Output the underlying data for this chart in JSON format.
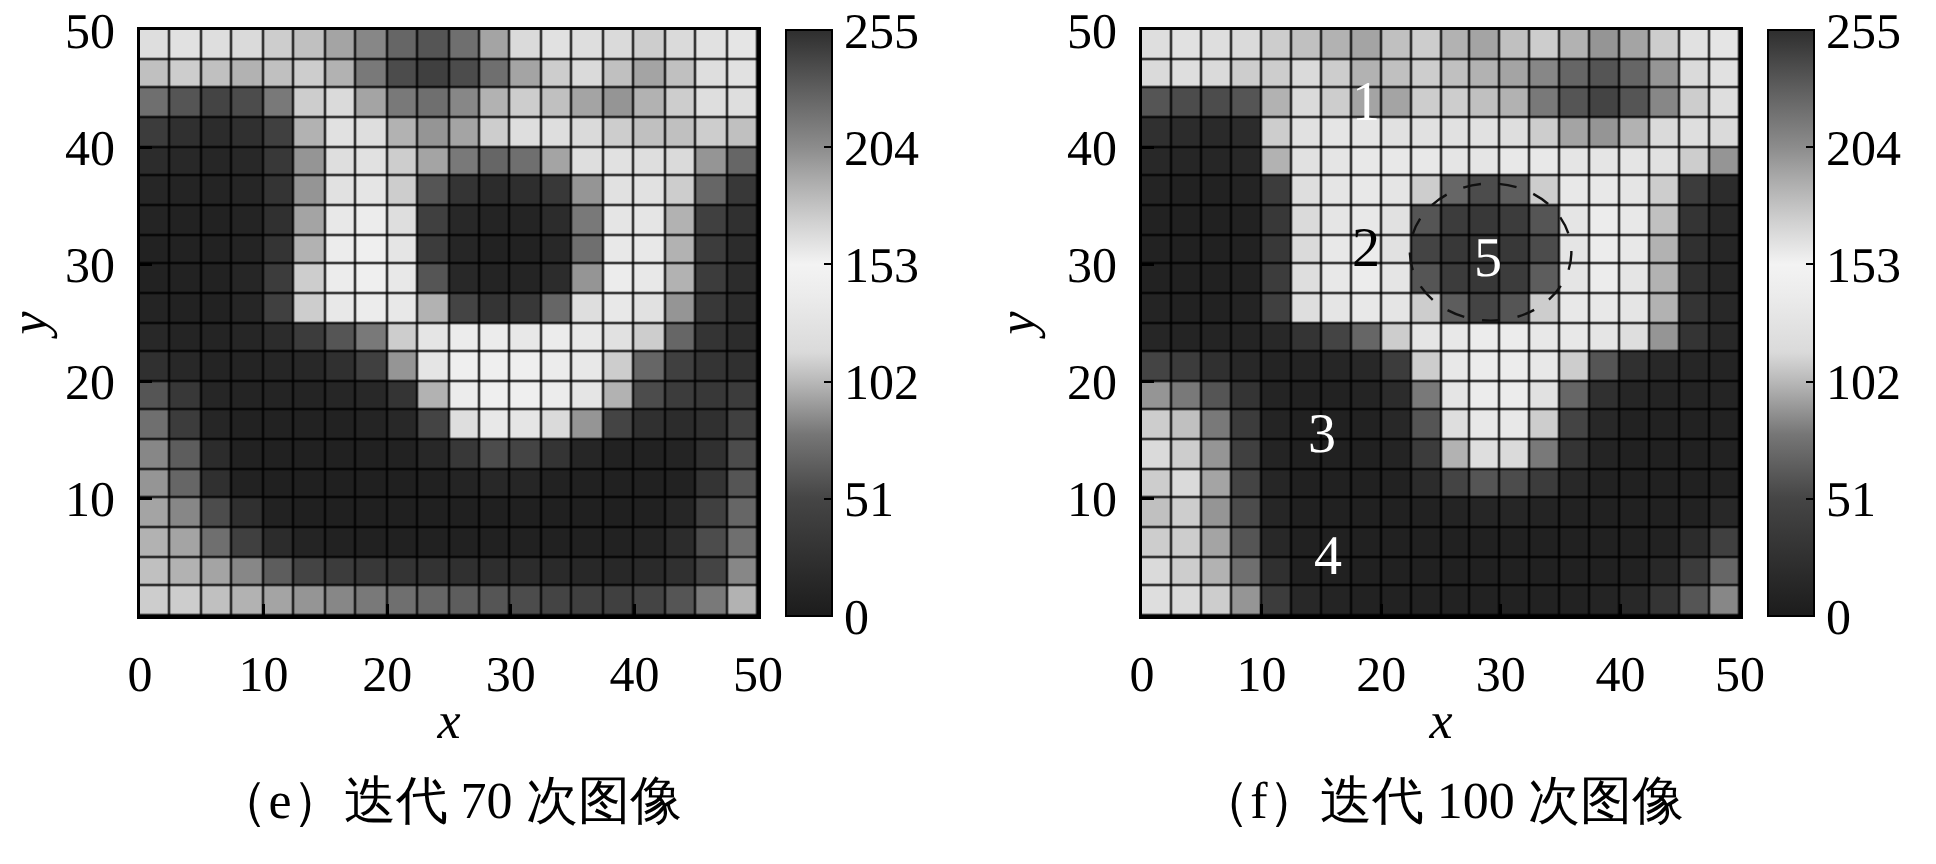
{
  "chart_data": [
    {
      "type": "heatmap",
      "title": "（e）迭代 70 次图像",
      "xlabel": "x",
      "ylabel": "y",
      "x": [
        1.25,
        3.75,
        6.25,
        8.75,
        11.25,
        13.75,
        16.25,
        18.75,
        21.25,
        23.75,
        26.25,
        28.75,
        31.25,
        33.75,
        36.25,
        38.75,
        41.25,
        43.75,
        46.25,
        48.75
      ],
      "cells": [
        [
          120,
          125,
          120,
          115,
          110,
          105,
          95,
          85,
          70,
          60,
          75,
          95,
          115,
          125,
          120,
          115,
          110,
          115,
          125,
          130
        ],
        [
          105,
          110,
          105,
          100,
          105,
          110,
          100,
          80,
          55,
          45,
          55,
          75,
          95,
          110,
          115,
          105,
          95,
          105,
          120,
          125
        ],
        [
          75,
          60,
          50,
          55,
          80,
          110,
          115,
          95,
          80,
          75,
          85,
          100,
          110,
          105,
          95,
          90,
          100,
          110,
          120,
          120
        ],
        [
          40,
          25,
          20,
          25,
          45,
          100,
          125,
          120,
          100,
          90,
          95,
          110,
          120,
          120,
          115,
          110,
          105,
          105,
          110,
          105
        ],
        [
          20,
          15,
          12,
          15,
          35,
          90,
          120,
          125,
          110,
          95,
          80,
          70,
          75,
          95,
          120,
          125,
          120,
          115,
          90,
          70
        ],
        [
          12,
          10,
          10,
          12,
          30,
          90,
          125,
          130,
          110,
          60,
          30,
          20,
          22,
          35,
          90,
          125,
          125,
          110,
          70,
          35
        ],
        [
          10,
          8,
          8,
          10,
          25,
          95,
          135,
          140,
          120,
          45,
          15,
          10,
          10,
          20,
          80,
          130,
          130,
          100,
          45,
          25
        ],
        [
          8,
          8,
          8,
          10,
          30,
          100,
          140,
          145,
          130,
          40,
          12,
          8,
          8,
          15,
          75,
          135,
          135,
          100,
          40,
          20
        ],
        [
          8,
          8,
          8,
          12,
          40,
          110,
          140,
          145,
          135,
          60,
          15,
          10,
          10,
          20,
          90,
          140,
          135,
          100,
          40,
          20
        ],
        [
          10,
          8,
          8,
          12,
          45,
          110,
          135,
          140,
          135,
          100,
          50,
          30,
          35,
          70,
          120,
          135,
          125,
          90,
          35,
          20
        ],
        [
          15,
          10,
          10,
          12,
          20,
          40,
          60,
          80,
          110,
          130,
          140,
          140,
          135,
          140,
          135,
          125,
          110,
          70,
          30,
          20
        ],
        [
          25,
          15,
          10,
          10,
          12,
          15,
          25,
          45,
          90,
          130,
          145,
          145,
          145,
          140,
          135,
          110,
          70,
          45,
          30,
          25
        ],
        [
          60,
          35,
          12,
          10,
          10,
          10,
          12,
          15,
          30,
          100,
          140,
          145,
          145,
          140,
          130,
          100,
          55,
          40,
          35,
          40
        ],
        [
          75,
          40,
          12,
          8,
          8,
          8,
          8,
          10,
          15,
          50,
          120,
          135,
          130,
          115,
          90,
          50,
          25,
          20,
          25,
          45
        ],
        [
          85,
          65,
          20,
          8,
          6,
          6,
          6,
          6,
          8,
          15,
          35,
          55,
          50,
          30,
          12,
          8,
          8,
          10,
          25,
          55
        ],
        [
          90,
          70,
          25,
          8,
          5,
          5,
          5,
          5,
          5,
          6,
          10,
          15,
          12,
          8,
          6,
          6,
          6,
          8,
          30,
          60
        ],
        [
          95,
          85,
          55,
          25,
          8,
          5,
          5,
          5,
          5,
          5,
          5,
          5,
          5,
          5,
          5,
          5,
          6,
          12,
          45,
          70
        ],
        [
          100,
          95,
          75,
          45,
          20,
          10,
          8,
          6,
          6,
          6,
          6,
          6,
          6,
          6,
          6,
          8,
          10,
          20,
          55,
          75
        ],
        [
          105,
          100,
          95,
          85,
          65,
          50,
          40,
          35,
          30,
          28,
          25,
          22,
          20,
          18,
          15,
          15,
          18,
          25,
          50,
          85
        ],
        [
          110,
          110,
          105,
          100,
          95,
          90,
          85,
          80,
          75,
          70,
          65,
          60,
          55,
          50,
          45,
          45,
          50,
          60,
          80,
          100
        ]
      ],
      "clim": [
        0,
        255
      ],
      "cticks": [
        0,
        51,
        102,
        153,
        204,
        255
      ],
      "xlim": [
        0,
        50
      ],
      "xticks": [
        0,
        10,
        20,
        30,
        40,
        50
      ],
      "ylim": [
        0,
        50
      ],
      "yticks": [
        10,
        20,
        30,
        40,
        50
      ]
    },
    {
      "type": "heatmap",
      "title": "（f）迭代 100 次图像",
      "xlabel": "x",
      "ylabel": "y",
      "x": [
        1.25,
        3.75,
        6.25,
        8.75,
        11.25,
        13.75,
        16.25,
        18.75,
        21.25,
        23.75,
        26.25,
        28.75,
        31.25,
        33.75,
        36.25,
        38.75,
        41.25,
        43.75,
        46.25,
        48.75
      ],
      "cells": [
        [
          120,
          125,
          120,
          115,
          110,
          105,
          100,
          95,
          105,
          110,
          100,
          95,
          105,
          110,
          100,
          90,
          95,
          110,
          125,
          130
        ],
        [
          115,
          120,
          115,
          110,
          110,
          115,
          110,
          100,
          105,
          110,
          105,
          100,
          95,
          85,
          70,
          60,
          70,
          90,
          115,
          125
        ],
        [
          60,
          55,
          55,
          60,
          100,
          115,
          110,
          95,
          95,
          110,
          110,
          105,
          100,
          80,
          60,
          50,
          60,
          85,
          110,
          120
        ],
        [
          25,
          20,
          18,
          20,
          110,
          125,
          130,
          130,
          125,
          125,
          125,
          125,
          120,
          110,
          95,
          90,
          100,
          115,
          120,
          115
        ],
        [
          15,
          12,
          12,
          15,
          100,
          125,
          130,
          135,
          135,
          135,
          130,
          130,
          135,
          135,
          130,
          130,
          130,
          125,
          110,
          90
        ],
        [
          10,
          8,
          8,
          10,
          40,
          120,
          130,
          135,
          130,
          110,
          70,
          55,
          65,
          110,
          135,
          135,
          130,
          110,
          40,
          20
        ],
        [
          8,
          6,
          6,
          8,
          35,
          115,
          130,
          135,
          125,
          60,
          40,
          35,
          40,
          60,
          130,
          140,
          135,
          105,
          30,
          15
        ],
        [
          8,
          6,
          6,
          8,
          35,
          115,
          135,
          140,
          125,
          50,
          35,
          30,
          35,
          55,
          130,
          140,
          135,
          100,
          25,
          12
        ],
        [
          8,
          6,
          6,
          8,
          40,
          120,
          135,
          140,
          130,
          60,
          40,
          35,
          40,
          65,
          130,
          140,
          130,
          100,
          25,
          12
        ],
        [
          10,
          8,
          8,
          10,
          45,
          120,
          130,
          135,
          130,
          110,
          65,
          50,
          60,
          110,
          135,
          135,
          130,
          100,
          30,
          15
        ],
        [
          12,
          10,
          10,
          10,
          15,
          30,
          50,
          70,
          110,
          130,
          135,
          140,
          140,
          135,
          135,
          130,
          120,
          90,
          30,
          15
        ],
        [
          50,
          40,
          25,
          15,
          10,
          10,
          12,
          15,
          40,
          110,
          135,
          140,
          140,
          135,
          110,
          60,
          25,
          15,
          12,
          10
        ],
        [
          90,
          80,
          60,
          30,
          10,
          8,
          8,
          10,
          20,
          80,
          130,
          140,
          140,
          125,
          70,
          25,
          12,
          10,
          10,
          10
        ],
        [
          110,
          105,
          80,
          40,
          10,
          6,
          6,
          8,
          15,
          60,
          120,
          135,
          135,
          110,
          50,
          15,
          8,
          8,
          8,
          8
        ],
        [
          115,
          110,
          90,
          45,
          10,
          6,
          6,
          6,
          10,
          40,
          100,
          120,
          115,
          80,
          30,
          10,
          6,
          6,
          6,
          8
        ],
        [
          110,
          115,
          95,
          50,
          12,
          6,
          6,
          6,
          8,
          20,
          50,
          60,
          55,
          40,
          15,
          8,
          6,
          6,
          6,
          8
        ],
        [
          105,
          110,
          90,
          55,
          12,
          6,
          6,
          6,
          6,
          8,
          10,
          12,
          12,
          10,
          8,
          6,
          6,
          6,
          8,
          15
        ],
        [
          110,
          110,
          95,
          60,
          15,
          6,
          6,
          6,
          6,
          6,
          6,
          6,
          6,
          6,
          6,
          6,
          6,
          8,
          20,
          45
        ],
        [
          115,
          110,
          100,
          75,
          25,
          8,
          6,
          6,
          6,
          6,
          6,
          6,
          6,
          6,
          6,
          6,
          8,
          15,
          40,
          70
        ],
        [
          120,
          115,
          110,
          90,
          40,
          15,
          10,
          8,
          8,
          8,
          8,
          8,
          8,
          8,
          8,
          10,
          15,
          30,
          60,
          85
        ]
      ],
      "clim": [
        0,
        255
      ],
      "cticks": [
        0,
        51,
        102,
        153,
        204,
        255
      ],
      "xlim": [
        0,
        50
      ],
      "xticks": [
        0,
        10,
        20,
        30,
        40,
        50
      ],
      "ylim": [
        0,
        50
      ],
      "yticks": [
        10,
        20,
        30,
        40,
        50
      ],
      "annotations": [
        "1",
        "2",
        "3",
        "4",
        "5"
      ]
    }
  ]
}
